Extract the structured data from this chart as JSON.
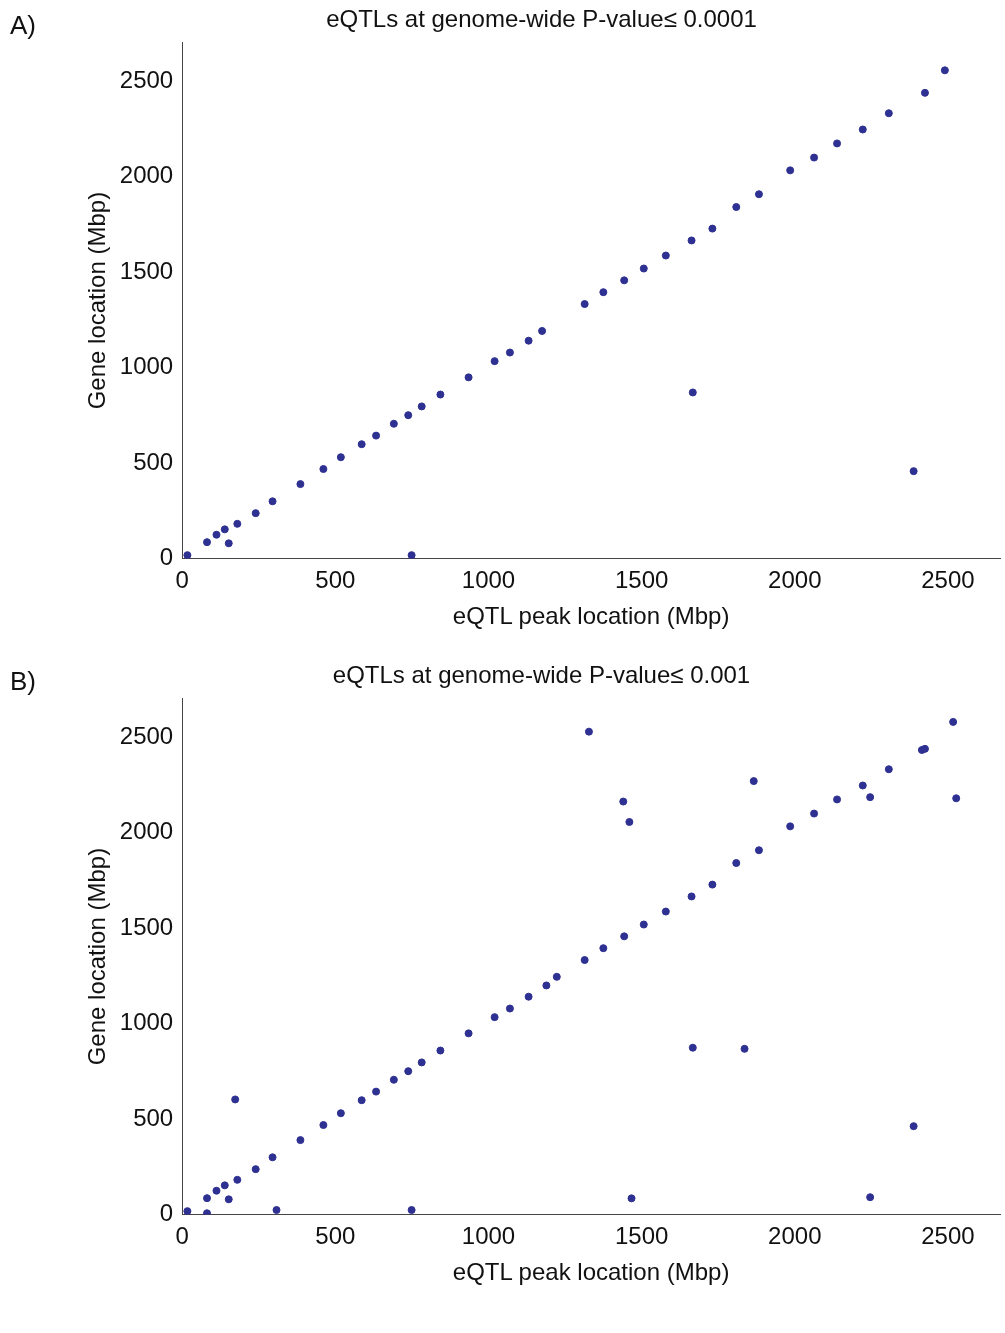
{
  "chart_data": [
    {
      "type": "scatter",
      "title": "eQTLs at genome-wide P-value≤ 0.0001",
      "xlabel": "eQTL peak location (Mbp)",
      "ylabel": "Gene location (Mbp)",
      "annotations": [
        "A)"
      ],
      "color": "#2e3192",
      "marker": "circle",
      "xlim": [
        0,
        2670
      ],
      "ylim": [
        0,
        2700
      ],
      "xticks": [
        0,
        500,
        1000,
        1500,
        2000,
        2500
      ],
      "yticks": [
        0,
        500,
        1000,
        1500,
        2000,
        2500
      ],
      "x": [
        17,
        81,
        112,
        139,
        152,
        180,
        240,
        295,
        386,
        461,
        518,
        586,
        633,
        691,
        738,
        749,
        782,
        843,
        935,
        1020,
        1070,
        1131,
        1175,
        1314,
        1375,
        1443,
        1507,
        1579,
        1663,
        1667,
        1731,
        1809,
        1883,
        1985,
        2063,
        2138,
        2222,
        2307,
        2388,
        2425,
        2490
      ],
      "values": [
        17,
        85,
        124,
        152,
        79,
        181,
        237,
        299,
        389,
        468,
        530,
        598,
        643,
        705,
        750,
        17,
        796,
        858,
        948,
        1033,
        1078,
        1140,
        1191,
        1332,
        1394,
        1456,
        1518,
        1586,
        1665,
        869,
        1727,
        1840,
        1907,
        2032,
        2099,
        2173,
        2246,
        2331,
        457,
        2438,
        2556
      ]
    },
    {
      "type": "scatter",
      "title": "eQTLs at genome-wide P-value≤ 0.001",
      "xlabel": "eQTL peak location (Mbp)",
      "ylabel": "Gene location (Mbp)",
      "annotations": [
        "B)"
      ],
      "color": "#2e3192",
      "marker": "circle",
      "xlim": [
        0,
        2670
      ],
      "ylim": [
        0,
        2700
      ],
      "xticks": [
        0,
        500,
        1000,
        1500,
        2000,
        2500
      ],
      "yticks": [
        0,
        500,
        1000,
        1500,
        2000,
        2500
      ],
      "x": [
        17,
        81,
        81,
        112,
        139,
        152,
        173,
        180,
        240,
        295,
        308,
        386,
        461,
        518,
        586,
        633,
        691,
        738,
        749,
        782,
        843,
        935,
        1020,
        1070,
        1131,
        1189,
        1223,
        1314,
        1328,
        1375,
        1440,
        1443,
        1460,
        1467,
        1507,
        1579,
        1663,
        1667,
        1731,
        1809,
        1836,
        1866,
        1883,
        1985,
        2063,
        2138,
        2222,
        2246,
        2246,
        2307,
        2388,
        2415,
        2425,
        2517,
        2527
      ],
      "values": [
        17,
        85,
        6,
        124,
        152,
        79,
        602,
        181,
        237,
        299,
        23,
        389,
        468,
        530,
        598,
        643,
        705,
        750,
        23,
        796,
        858,
        948,
        1033,
        1078,
        1140,
        1199,
        1244,
        1332,
        2528,
        1394,
        2162,
        1456,
        2055,
        84,
        1518,
        1586,
        1665,
        873,
        1727,
        1840,
        867,
        2269,
        1907,
        2032,
        2099,
        2173,
        2246,
        2185,
        90,
        2331,
        462,
        2432,
        2438,
        2579,
        2179
      ]
    }
  ]
}
